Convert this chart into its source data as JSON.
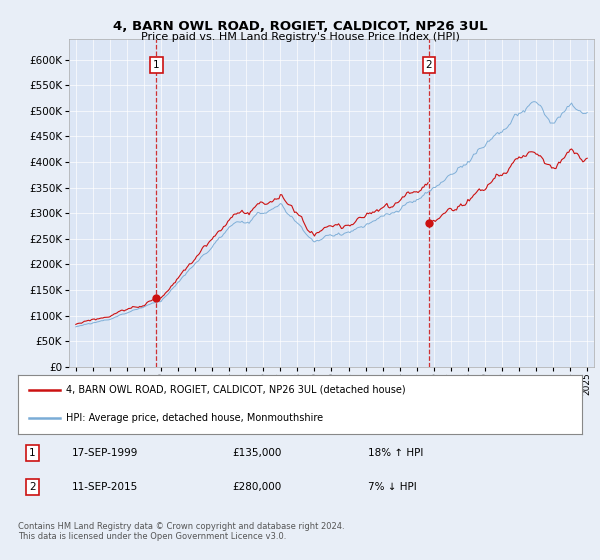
{
  "title": "4, BARN OWL ROAD, ROGIET, CALDICOT, NP26 3UL",
  "subtitle": "Price paid vs. HM Land Registry's House Price Index (HPI)",
  "background_color": "#e8eef7",
  "plot_bg_color": "#dce6f5",
  "ytick_vals": [
    0,
    50000,
    100000,
    150000,
    200000,
    250000,
    300000,
    350000,
    400000,
    450000,
    500000,
    550000,
    600000
  ],
  "ylim": [
    0,
    640000
  ],
  "xlim_start": 1994.6,
  "xlim_end": 2025.4,
  "sale1_year": 1999.72,
  "sale1_price": 135000,
  "sale2_year": 2015.72,
  "sale2_price": 280000,
  "legend_line1": "4, BARN OWL ROAD, ROGIET, CALDICOT, NP26 3UL (detached house)",
  "legend_line2": "HPI: Average price, detached house, Monmouthshire",
  "table_row1": [
    "1",
    "17-SEP-1999",
    "£135,000",
    "18% ↑ HPI"
  ],
  "table_row2": [
    "2",
    "11-SEP-2015",
    "£280,000",
    "7% ↓ HPI"
  ],
  "footer": "Contains HM Land Registry data © Crown copyright and database right 2024.\nThis data is licensed under the Open Government Licence v3.0.",
  "hpi_color": "#7aacd6",
  "sale_color": "#cc1111",
  "vline_color": "#cc1111",
  "box_color": "#cc1111",
  "xticks": [
    1995,
    1996,
    1997,
    1998,
    1999,
    2000,
    2001,
    2002,
    2003,
    2004,
    2005,
    2006,
    2007,
    2008,
    2009,
    2010,
    2011,
    2012,
    2013,
    2014,
    2015,
    2016,
    2017,
    2018,
    2019,
    2020,
    2021,
    2022,
    2023,
    2024,
    2025
  ]
}
